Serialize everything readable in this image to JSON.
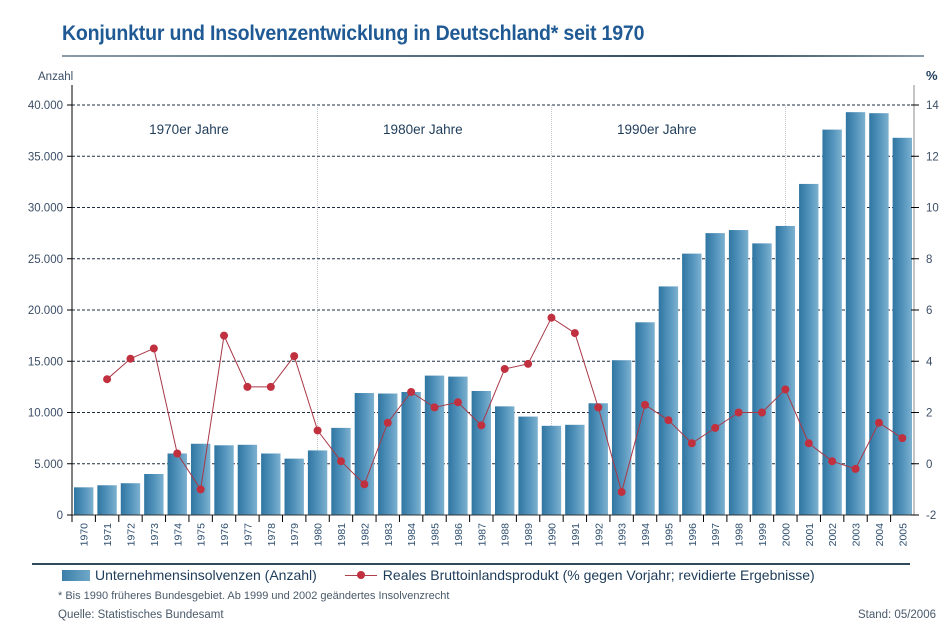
{
  "header": {
    "title": "Konjunktur und Insolvenzentwicklung in Deutschland* seit 1970"
  },
  "chart_data": {
    "type": "bar",
    "title": "Konjunktur und Insolvenzentwicklung in Deutschland* seit 1970",
    "xlabel": "",
    "ylabel": "Anzahl",
    "y2label": "%",
    "ylim": [
      0,
      40000
    ],
    "y2lim": [
      -2,
      14
    ],
    "grid": true,
    "legend_position": "bottom",
    "yticks": [
      0,
      5000,
      10000,
      15000,
      20000,
      25000,
      30000,
      35000,
      40000
    ],
    "yticklabels": [
      "0",
      "5.000",
      "10.000",
      "15.000",
      "20.000",
      "25.000",
      "30.000",
      "35.000",
      "40.000"
    ],
    "y2ticks": [
      -2,
      0,
      2,
      4,
      6,
      8,
      10,
      12,
      14
    ],
    "y2ticklabels": [
      "-2",
      "0",
      "2",
      "4",
      "6",
      "8",
      "10",
      "12",
      "14"
    ],
    "categories": [
      "1970",
      "1971",
      "1972",
      "1973",
      "1974",
      "1975",
      "1976",
      "1977",
      "1978",
      "1979",
      "1980",
      "1981",
      "1982",
      "1983",
      "1984",
      "1985",
      "1986",
      "1987",
      "1988",
      "1989",
      "1990",
      "1991",
      "1992",
      "1993",
      "1994",
      "1995",
      "1996",
      "1997",
      "1998",
      "1999",
      "2000",
      "2001",
      "2002",
      "2003",
      "2004",
      "2005"
    ],
    "decades": [
      {
        "label": "1970er Jahre",
        "start": "1970",
        "end": "1979"
      },
      {
        "label": "1980er Jahre",
        "start": "1980",
        "end": "1989"
      },
      {
        "label": "1990er Jahre",
        "start": "1990",
        "end": "1999"
      }
    ],
    "series": [
      {
        "name": "Unternehmensinsolvenzen (Anzahl)",
        "type": "bar",
        "axis": "left",
        "color": "#3b7fa9",
        "values": [
          2700,
          2900,
          3100,
          4000,
          6000,
          6950,
          6800,
          6850,
          6000,
          5500,
          6300,
          8500,
          11900,
          11850,
          12000,
          13600,
          13500,
          12100,
          10600,
          9600,
          8700,
          8800,
          10900,
          15100,
          18800,
          22300,
          25500,
          27500,
          27800,
          26500,
          28200,
          32300,
          37600,
          39300,
          39200,
          36800
        ]
      },
      {
        "name": "Reales Bruttoinlandsprodukt (% gegen Vorjahr; revidierte Ergebnisse)",
        "type": "line",
        "axis": "right",
        "color": "#c0303f",
        "values": [
          null,
          3.3,
          4.1,
          4.5,
          0.4,
          -1.0,
          5.0,
          3.0,
          3.0,
          4.2,
          1.3,
          0.1,
          -0.8,
          1.6,
          2.8,
          2.2,
          2.4,
          1.5,
          3.7,
          3.9,
          5.7,
          5.1,
          2.2,
          -1.1,
          2.3,
          1.7,
          0.8,
          1.4,
          2.0,
          2.0,
          2.9,
          0.8,
          0.1,
          -0.2,
          1.6,
          1.0
        ]
      }
    ]
  },
  "legend": {
    "bar_label": "Unternehmensinsolvenzen (Anzahl)",
    "line_label": "Reales Bruttoinlandsprodukt (% gegen Vorjahr; revidierte Ergebnisse)"
  },
  "footer": {
    "footnote": "* Bis 1990 früheres Bundesgebiet. Ab 1999 und 2002 geändertes Insolvenzrecht",
    "source": "Quelle: Statistisches Bundesamt",
    "stand": "Stand: 05/2006"
  }
}
